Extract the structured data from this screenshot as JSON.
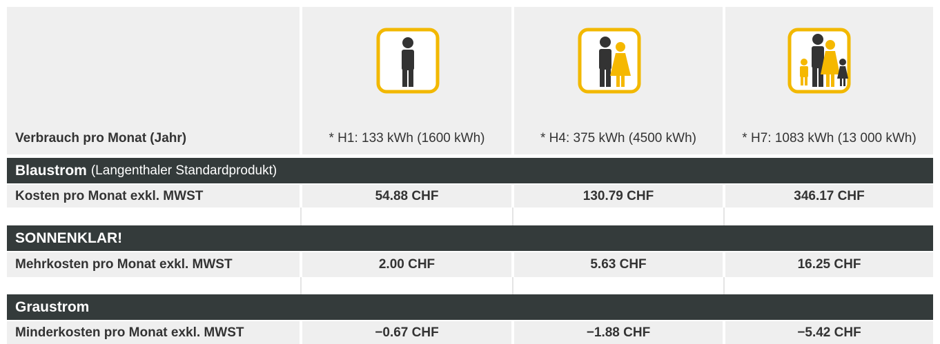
{
  "table": {
    "header": {
      "label": "Verbrauch pro Monat (Jahr)",
      "columns": [
        "* H1: 133 kWh (1600 kWh)",
        "* H4: 375 kWh (4500 kWh)",
        "* H7: 1083 kWh (13 000 kWh)"
      ]
    },
    "sections": [
      {
        "title": "Blaustrom",
        "subtitle": "(Langenthaler Standardprodukt)",
        "row": {
          "label": "Kosten pro Monat exkl. MWST",
          "cells": [
            "54.88 CHF",
            "130.79 CHF",
            "346.17 CHF"
          ]
        }
      },
      {
        "title": "SONNENKLAR!",
        "row": {
          "label": "Mehrkosten pro Monat exkl. MWST",
          "cells": [
            "2.00 CHF",
            "5.63 CHF",
            "16.25 CHF"
          ]
        }
      },
      {
        "title": "Graustrom",
        "row": {
          "label": "Minderkosten pro Monat exkl. MWST",
          "cells": [
            "−0.67 CHF",
            "−1.88 CHF",
            "−5.42 CHF"
          ]
        }
      }
    ]
  }
}
